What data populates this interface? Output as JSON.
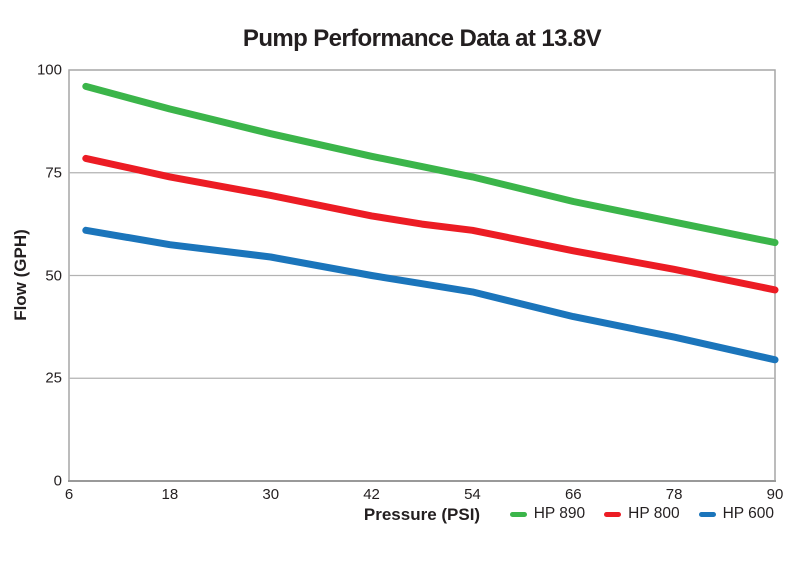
{
  "chart_data": {
    "type": "line",
    "title": "Pump Performance Data at 13.8V",
    "xlabel": "Pressure (PSI)",
    "ylabel": "Flow (GPH)",
    "xlim": [
      6,
      90
    ],
    "ylim": [
      0,
      100
    ],
    "x_ticks": [
      6,
      18,
      30,
      42,
      54,
      66,
      78,
      90
    ],
    "y_ticks": [
      0,
      25,
      50,
      75,
      100
    ],
    "grid": "horizontal",
    "legend_position": "bottom-right",
    "x": [
      8,
      18,
      30,
      42,
      48,
      54,
      66,
      78,
      90
    ],
    "series": [
      {
        "name": "HP 890",
        "color": "#3bb54a",
        "values": [
          96,
          90.5,
          84.5,
          79,
          76.5,
          74,
          68,
          63,
          58
        ]
      },
      {
        "name": "HP 800",
        "color": "#ec1c24",
        "values": [
          78.5,
          74,
          69.5,
          64.5,
          62.5,
          61,
          56,
          51.5,
          46.5
        ]
      },
      {
        "name": "HP 600",
        "color": "#1b75bb",
        "values": [
          61,
          57.5,
          54.5,
          50,
          48,
          46,
          40,
          35,
          29.5
        ]
      }
    ],
    "colors": {
      "grid": "#b3b3b3",
      "border": "#a6a6a6",
      "axis": "#999999",
      "text": "#231f20"
    }
  }
}
